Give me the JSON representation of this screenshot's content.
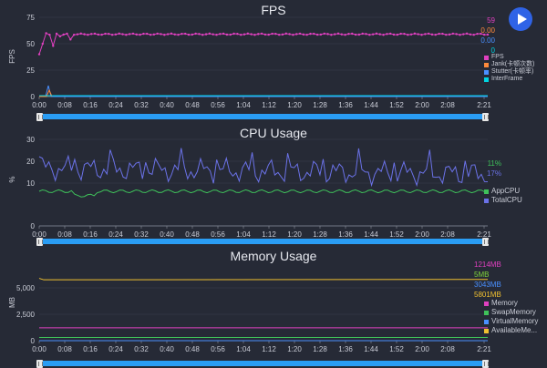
{
  "fps": {
    "title": "FPS",
    "ylabel": "FPS",
    "yticks": [
      "75",
      "50",
      "25",
      "0"
    ],
    "xticks": [
      "0:00",
      "0:08",
      "0:16",
      "0:24",
      "0:32",
      "0:40",
      "0:48",
      "0:56",
      "1:04",
      "1:12",
      "1:20",
      "1:28",
      "1:36",
      "1:44",
      "1:52",
      "2:00",
      "2:08",
      "2:21"
    ],
    "current": [
      "59",
      "0.00",
      "0.00",
      "0"
    ],
    "current_colors": [
      "#e040c0",
      "#ff8a3c",
      "#4a90ff",
      "#00d4e0"
    ],
    "legend": [
      {
        "label": "FPS",
        "color": "#e040c0"
      },
      {
        "label": "Jank(卡顿次数)",
        "color": "#ff8a3c"
      },
      {
        "label": "Stutter(卡顿率)",
        "color": "#4a90ff"
      },
      {
        "label": "InterFrame",
        "color": "#00d4e0"
      }
    ]
  },
  "cpu": {
    "title": "CPU Usage",
    "ylabel": "%",
    "yticks": [
      "30",
      "20",
      "10",
      "0"
    ],
    "xticks": [
      "0:00",
      "0:08",
      "0:16",
      "0:24",
      "0:32",
      "0:40",
      "0:48",
      "0:56",
      "1:04",
      "1:12",
      "1:20",
      "1:28",
      "1:36",
      "1:44",
      "1:52",
      "2:00",
      "2:08",
      "2:21"
    ],
    "current": [
      "11%",
      "17%"
    ],
    "current_colors": [
      "#3fc25a",
      "#6b72e8"
    ],
    "legend": [
      {
        "label": "AppCPU",
        "color": "#3fc25a"
      },
      {
        "label": "TotalCPU",
        "color": "#6b72e8"
      }
    ]
  },
  "memory": {
    "title": "Memory Usage",
    "ylabel": "MB",
    "yticks": [
      "5,000",
      "2,500",
      "0"
    ],
    "xticks": [
      "0:00",
      "0:08",
      "0:16",
      "0:24",
      "0:32",
      "0:40",
      "0:48",
      "0:56",
      "1:04",
      "1:12",
      "1:20",
      "1:28",
      "1:36",
      "1:44",
      "1:52",
      "2:00",
      "2:08",
      "2:21"
    ],
    "current": [
      "1214MB",
      "5MB",
      "3043MB",
      "5801MB"
    ],
    "current_colors": [
      "#e040c0",
      "#7fd43a",
      "#4a90ff",
      "#f0c030"
    ],
    "legend": [
      {
        "label": "Memory",
        "color": "#e040c0"
      },
      {
        "label": "SwapMemory",
        "color": "#3fc25a"
      },
      {
        "label": "VirtualMemory",
        "color": "#4a90ff"
      },
      {
        "label": "AvailableMe...",
        "color": "#f0c030"
      }
    ]
  },
  "controls": {
    "play_icon": "play-icon",
    "play_color": "#2f63e6"
  }
}
